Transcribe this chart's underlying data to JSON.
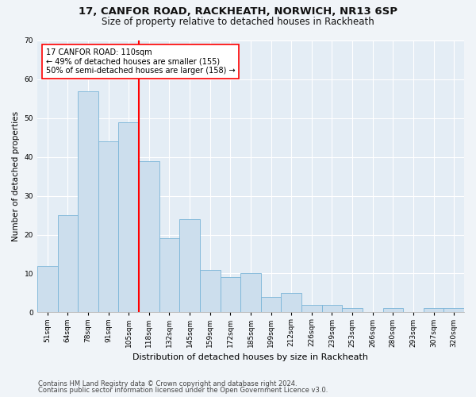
{
  "title1": "17, CANFOR ROAD, RACKHEATH, NORWICH, NR13 6SP",
  "title2": "Size of property relative to detached houses in Rackheath",
  "xlabel": "Distribution of detached houses by size in Rackheath",
  "ylabel": "Number of detached properties",
  "categories": [
    "51sqm",
    "64sqm",
    "78sqm",
    "91sqm",
    "105sqm",
    "118sqm",
    "132sqm",
    "145sqm",
    "159sqm",
    "172sqm",
    "185sqm",
    "199sqm",
    "212sqm",
    "226sqm",
    "239sqm",
    "253sqm",
    "266sqm",
    "280sqm",
    "293sqm",
    "307sqm",
    "320sqm"
  ],
  "values": [
    12,
    25,
    57,
    44,
    49,
    39,
    19,
    24,
    11,
    9,
    10,
    4,
    5,
    2,
    2,
    1,
    0,
    1,
    0,
    1,
    1
  ],
  "bar_color": "#ccdeed",
  "bar_edge_color": "#7ab4d8",
  "vline_x_index": 4,
  "vline_color": "red",
  "annotation_text": "17 CANFOR ROAD: 110sqm\n← 49% of detached houses are smaller (155)\n50% of semi-detached houses are larger (158) →",
  "annotation_box_color": "white",
  "annotation_box_edge": "red",
  "ylim": [
    0,
    70
  ],
  "yticks": [
    0,
    10,
    20,
    30,
    40,
    50,
    60,
    70
  ],
  "footer1": "Contains HM Land Registry data © Crown copyright and database right 2024.",
  "footer2": "Contains public sector information licensed under the Open Government Licence v3.0.",
  "bg_color": "#f0f4f8",
  "plot_bg_color": "#e4edf5",
  "title1_fontsize": 9.5,
  "title2_fontsize": 8.5,
  "xlabel_fontsize": 8,
  "ylabel_fontsize": 7.5,
  "tick_fontsize": 6.5,
  "annotation_fontsize": 7,
  "footer_fontsize": 6
}
